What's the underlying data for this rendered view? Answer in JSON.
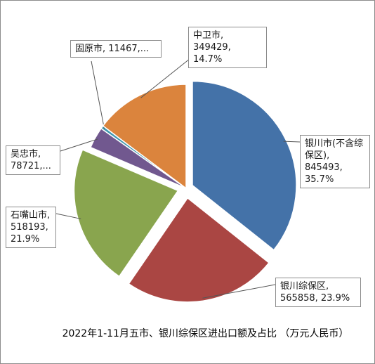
{
  "chart_data": {
    "type": "pie",
    "title": "2022年1-11月五市、银川综保区进出口额及占比 （万元人民币）",
    "slices": [
      {
        "name": "银川市(不含综保区)",
        "value": 845493,
        "percent": 35.7,
        "color": "#4472a8",
        "label": "银川市(不含综\n保区), 845493,\n35.7%"
      },
      {
        "name": "银川综保区",
        "value": 565858,
        "percent": 23.9,
        "color": "#aa4643",
        "label": "银川综保区,\n565858, 23.9%"
      },
      {
        "name": "石嘴山市",
        "value": 518193,
        "percent": 21.9,
        "color": "#89a54e",
        "label": "石嘴山市,\n518193,\n21.9%"
      },
      {
        "name": "吴忠市",
        "value": 78721,
        "percent": 3.3,
        "color": "#71588f",
        "label": "吴忠市,\n78721,..."
      },
      {
        "name": "固原市",
        "value": 11467,
        "percent": 0.5,
        "color": "#4198af",
        "label": "固原市, 11467,..."
      },
      {
        "name": "中卫市",
        "value": 349429,
        "percent": 14.7,
        "color": "#db843d",
        "label": "中卫市, 349429,\n14.7%"
      }
    ]
  }
}
